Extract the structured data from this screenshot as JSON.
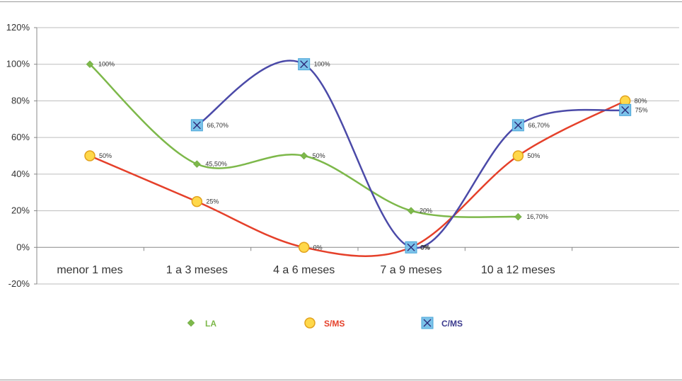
{
  "chart_data": {
    "type": "line",
    "categories": [
      "menor 1 mes",
      "1 a 3 meses",
      "4 a 6 meses",
      "7 a 9 meses",
      "10 a 12 meses",
      ""
    ],
    "y_ticks": [
      "120%",
      "100%",
      "80%",
      "60%",
      "40%",
      "20%",
      "0%",
      "-20%"
    ],
    "ylim": [
      -20,
      120
    ],
    "grid": true,
    "legend_position": "bottom",
    "series": [
      {
        "name": "LA",
        "color": "#7db84a",
        "marker": "diamond",
        "values": [
          100,
          45.5,
          50,
          20,
          16.7,
          null
        ],
        "labels": [
          "100%",
          "45,50%",
          "50%",
          "20%",
          "16,70%",
          ""
        ]
      },
      {
        "name": "S/MS",
        "color": "#e5402a",
        "marker": "circle",
        "values": [
          50,
          25,
          0,
          0,
          50,
          80
        ],
        "labels": [
          "50%",
          "25%",
          "0%",
          "0%",
          "50%",
          "80%"
        ]
      },
      {
        "name": "C/MS",
        "color": "#4b4aa8",
        "marker": "x-square",
        "values": [
          null,
          66.7,
          100,
          0,
          66.7,
          75
        ],
        "labels": [
          "",
          "66,70%",
          "100%",
          "0%",
          "66,70%",
          "75%"
        ]
      }
    ]
  }
}
